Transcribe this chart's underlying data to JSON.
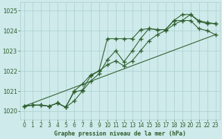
{
  "title": "Graphe pression niveau de la mer (hPa)",
  "bg_color": "#ceeaea",
  "grid_color": "#aacece",
  "line_color": "#2d5e2d",
  "xlim": [
    -0.5,
    23.5
  ],
  "ylim": [
    1019.6,
    1025.4
  ],
  "yticks": [
    1020,
    1021,
    1022,
    1023,
    1024,
    1025
  ],
  "xticks": [
    0,
    1,
    2,
    3,
    4,
    5,
    6,
    7,
    8,
    9,
    10,
    11,
    12,
    13,
    14,
    15,
    16,
    17,
    18,
    19,
    20,
    21,
    22,
    23
  ],
  "series1": [
    1020.25,
    1020.3,
    1020.3,
    1020.25,
    1020.4,
    1020.2,
    1020.95,
    1021.05,
    1021.75,
    1022.0,
    1022.3,
    1022.5,
    1022.25,
    1022.5,
    1023.0,
    1023.5,
    1023.8,
    1024.0,
    1024.3,
    1024.5,
    1024.5,
    1024.1,
    1024.0,
    1023.8
  ],
  "series2": [
    1020.25,
    1020.3,
    1020.3,
    1020.25,
    1020.4,
    1020.2,
    1020.5,
    1021.0,
    1021.5,
    1021.85,
    1022.55,
    1023.0,
    1022.45,
    1023.0,
    1023.6,
    1024.1,
    1024.05,
    1024.05,
    1024.5,
    1024.5,
    1024.8,
    1024.45,
    1024.35,
    1024.35
  ],
  "series3": [
    1020.25,
    1020.3,
    1020.3,
    1020.25,
    1020.4,
    1020.2,
    1021.0,
    1021.35,
    1021.8,
    1022.0,
    1023.6,
    1023.6,
    1023.6,
    1023.6,
    1024.05,
    1024.1,
    1024.05,
    1024.05,
    1024.5,
    1024.8,
    1024.8,
    1024.5,
    1024.4,
    1024.35
  ],
  "trend_x": [
    0,
    23
  ],
  "trend_y": [
    1020.25,
    1023.8
  ]
}
